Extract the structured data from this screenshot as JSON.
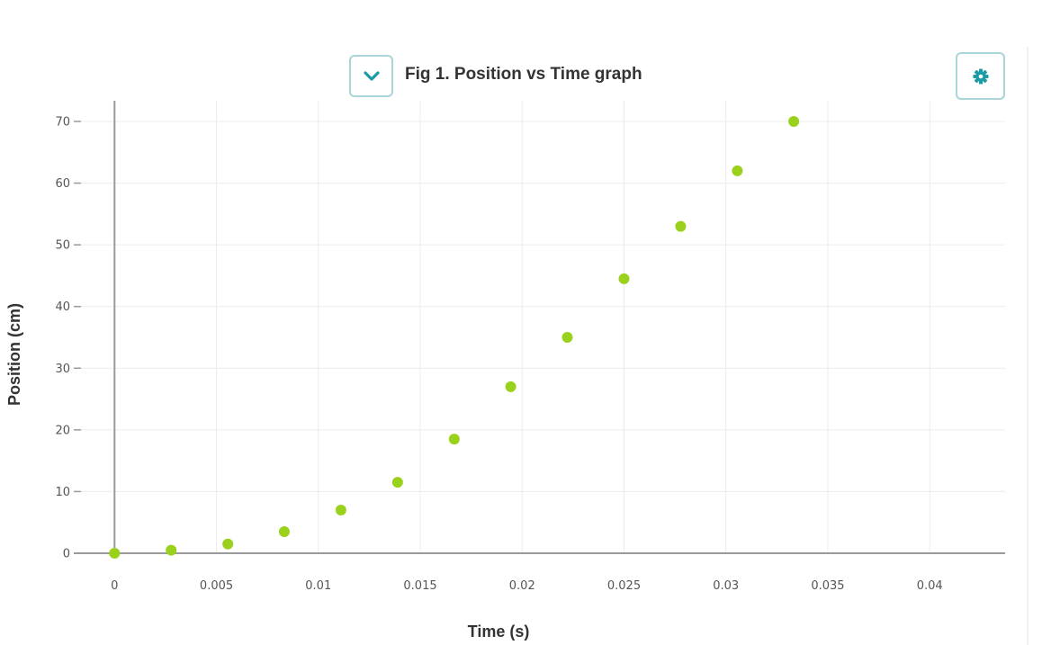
{
  "toolbar": {
    "collapse_icon": "chevron-down-icon",
    "settings_icon": "gear-icon",
    "accent_color": "#1a9ba6"
  },
  "chart_data": {
    "type": "scatter",
    "title": "Fig 1. Position vs Time graph",
    "xlabel": "Time (s)",
    "ylabel": "Position (cm)",
    "xlim": [
      -0.002,
      0.0437
    ],
    "ylim": [
      0,
      70
    ],
    "x_ticks": [
      0,
      0.005,
      0.01,
      0.015,
      0.02,
      0.025,
      0.03,
      0.035,
      0.04
    ],
    "x_tick_labels": [
      "0",
      "0.005",
      "0.01",
      "0.015",
      "0.02",
      "0.025",
      "0.03",
      "0.035",
      "0.04"
    ],
    "y_ticks": [
      0,
      10,
      20,
      30,
      40,
      50,
      60,
      70
    ],
    "y_tick_labels": [
      "0",
      "10",
      "20",
      "30",
      "40",
      "50",
      "60",
      "70"
    ],
    "grid": true,
    "marker_color": "#99d11c",
    "points": [
      {
        "x": 0,
        "y": 0
      },
      {
        "x": 0.00278,
        "y": 0.5
      },
      {
        "x": 0.00556,
        "y": 1.5
      },
      {
        "x": 0.00833,
        "y": 3.5
      },
      {
        "x": 0.01111,
        "y": 7
      },
      {
        "x": 0.01389,
        "y": 11.5
      },
      {
        "x": 0.01667,
        "y": 18.5
      },
      {
        "x": 0.01944,
        "y": 27
      },
      {
        "x": 0.02222,
        "y": 35
      },
      {
        "x": 0.025,
        "y": 44.5
      },
      {
        "x": 0.02778,
        "y": 53
      },
      {
        "x": 0.03056,
        "y": 62
      },
      {
        "x": 0.03333,
        "y": 70
      }
    ]
  }
}
